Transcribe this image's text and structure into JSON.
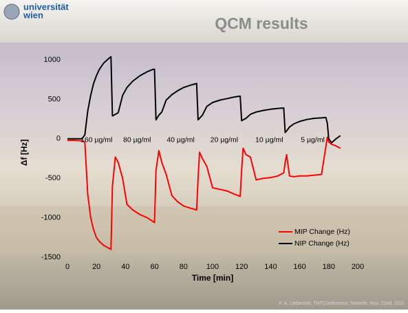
{
  "slide": {
    "logo_lines": [
      "universität",
      "wien"
    ],
    "title": "QCM results",
    "footer": "P. A. Lieberzeit, TNTConference, Tenerife, Nov. 22nd, 2011"
  },
  "chart_data": {
    "type": "line",
    "xlabel": "Time [min]",
    "ylabel": "Δf [Hz]",
    "x": [
      0,
      5,
      10,
      12,
      14,
      16,
      18,
      20,
      22,
      25,
      28,
      30,
      31,
      33,
      35,
      38,
      41,
      45,
      50,
      55,
      59,
      60,
      61,
      63,
      65,
      68,
      72,
      76,
      80,
      85,
      89,
      90,
      91,
      93,
      96,
      100,
      105,
      110,
      115,
      119,
      120,
      121,
      123,
      126,
      130,
      135,
      140,
      145,
      149,
      150,
      151,
      153,
      156,
      160,
      165,
      170,
      175,
      178,
      179,
      180,
      182,
      185,
      188
    ],
    "series": [
      {
        "name": "MIP Change (Hz)",
        "color": "#ff0000",
        "values": [
          -20,
          -20,
          -25,
          -40,
          -700,
          -1000,
          -1150,
          -1250,
          -1300,
          -1350,
          -1380,
          -1400,
          -600,
          -230,
          -300,
          -500,
          -830,
          -900,
          -960,
          -1000,
          -1050,
          -1060,
          -400,
          -150,
          -300,
          -450,
          -720,
          -800,
          -850,
          -880,
          -900,
          -500,
          -170,
          -250,
          -350,
          -620,
          -640,
          -660,
          -700,
          -730,
          -400,
          -120,
          -200,
          -230,
          -520,
          -500,
          -490,
          -470,
          -430,
          -300,
          -200,
          -470,
          -480,
          -470,
          -470,
          -460,
          -450,
          -100,
          20,
          -40,
          -70,
          -90,
          -120
        ]
      },
      {
        "name": "NIP Change (Hz)",
        "color": "#000000",
        "values": [
          0,
          0,
          0,
          50,
          350,
          550,
          700,
          800,
          880,
          960,
          1010,
          1040,
          290,
          310,
          330,
          550,
          650,
          730,
          800,
          850,
          880,
          880,
          240,
          300,
          340,
          490,
          560,
          610,
          650,
          680,
          700,
          240,
          260,
          300,
          410,
          460,
          490,
          510,
          530,
          540,
          230,
          240,
          260,
          310,
          340,
          360,
          375,
          385,
          390,
          80,
          100,
          150,
          190,
          220,
          245,
          260,
          265,
          270,
          200,
          0,
          -50,
          0,
          40
        ]
      }
    ],
    "annotations": [
      "160 µg/ml",
      "80 µg/ml",
      "40 µg/ml",
      "20 µg/ml",
      "10 µg/ml",
      "5 µg/ml"
    ],
    "xlim": [
      0,
      200
    ],
    "xticks": [
      0,
      20,
      40,
      60,
      80,
      100,
      120,
      140,
      160,
      180,
      200
    ],
    "ylim": [
      -1500,
      1000
    ],
    "yticks": [
      -1500,
      -1000,
      -500,
      0,
      500,
      1000
    ],
    "legend": "lower right"
  }
}
